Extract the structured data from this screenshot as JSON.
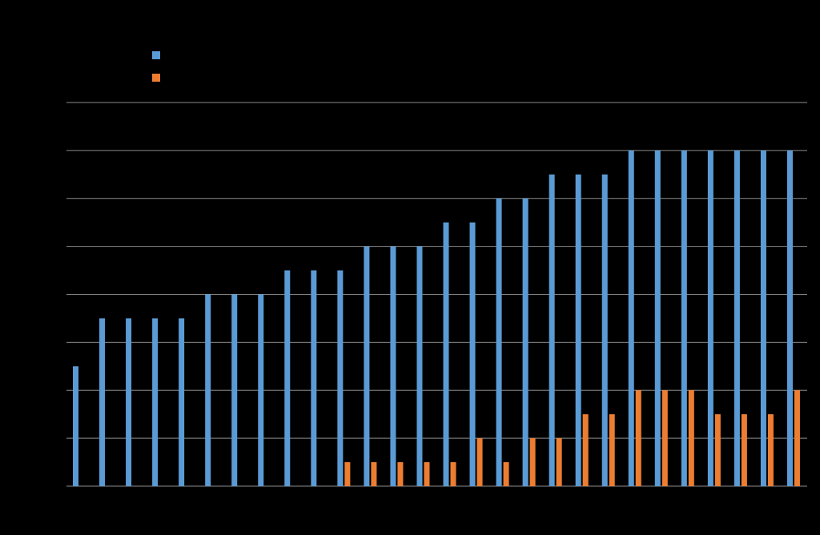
{
  "chart_data": {
    "type": "bar",
    "title": "",
    "xlabel": "",
    "ylabel": "",
    "ylim": [
      0,
      8
    ],
    "grid": true,
    "legend_position": "top-left",
    "categories": [
      "",
      "",
      "",
      "",
      "",
      "",
      "",
      "",
      "",
      "",
      "",
      "",
      "",
      "",
      "",
      "",
      "",
      "",
      "",
      "",
      "",
      "",
      "",
      "",
      "",
      "",
      "",
      ""
    ],
    "series": [
      {
        "color": "#5B9BD5",
        "values": [
          2.5,
          3.5,
          3.5,
          3.5,
          3.5,
          4,
          4,
          4,
          4.5,
          4.5,
          4.5,
          5,
          5,
          5,
          5.5,
          5.5,
          6,
          6,
          6.5,
          6.5,
          6.5,
          7,
          7,
          7,
          7,
          7,
          7,
          7
        ]
      },
      {
        "color": "#ED7D31",
        "values": [
          0,
          0,
          0,
          0,
          0,
          0,
          0,
          0,
          0,
          0,
          0.5,
          0.5,
          0.5,
          0.5,
          0.5,
          1,
          0.5,
          1,
          1,
          1.5,
          1.5,
          2,
          2,
          2,
          1.5,
          1.5,
          1.5,
          2
        ]
      }
    ]
  },
  "colors": {
    "background": "#000000",
    "gridline": "#8C8C8C"
  }
}
